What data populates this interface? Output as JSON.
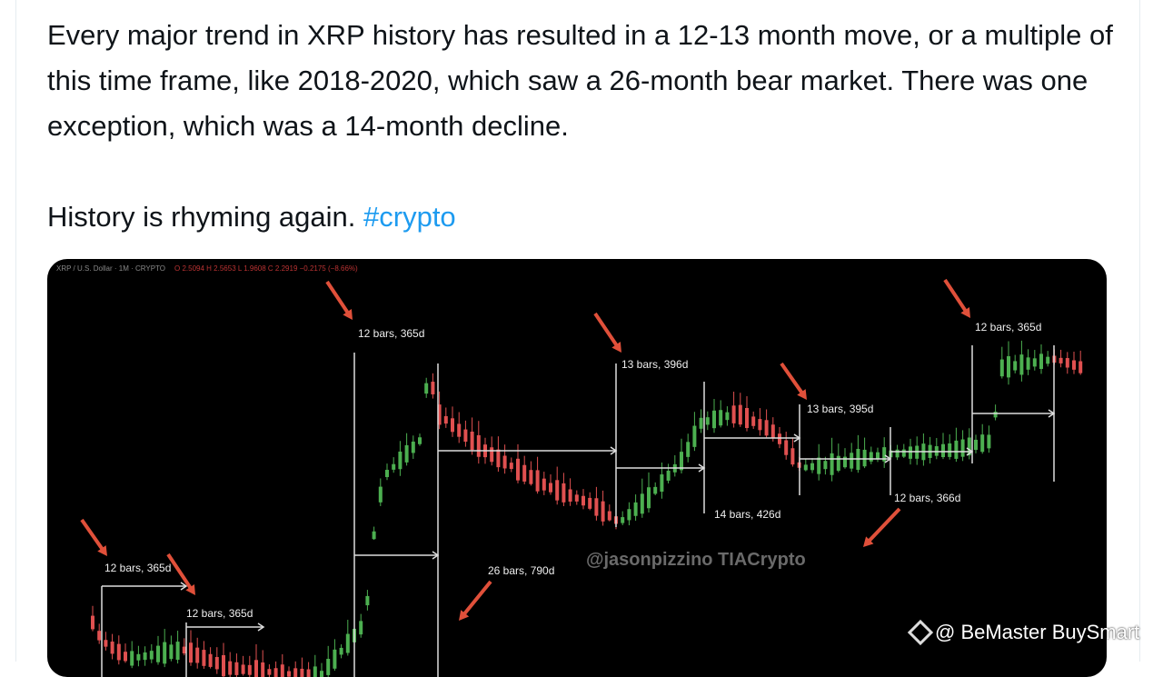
{
  "post": {
    "paragraph1": "Every major trend in XRP history has resulted in a 12-13 month move, or a multiple of this time frame, like 2018-2020, which saw a 26-month bear market. There was one exception, which was a 14-month decline.",
    "paragraph2": "History is rhyming again. ",
    "hashtag": "#crypto"
  },
  "chart_image": {
    "symbol_header": "XRP / U.S. Dollar · 1M · CRYPTO",
    "ohlc": "O 2.5094 H 2.5653 L 1.9608 C 2.2919 −0.2175 (−8.66%)",
    "labels": [
      "12 bars, 365d",
      "13 bars, 396d",
      "13 bars, 395d",
      "12 bars, 365d",
      "12 bars, 365d",
      "12 bars, 365d",
      "26 bars, 790d",
      "14 bars, 426d",
      "12 bars, 366d"
    ],
    "watermark": "@jasonpizzino TIACrypto",
    "colors": {
      "up": "#4caf50",
      "down": "#e05050",
      "arrow": "#e0503a",
      "background": "#000000"
    }
  },
  "credit": {
    "text": "@ BeMaster BuySmart",
    "icon": "binance-diamond-icon"
  }
}
